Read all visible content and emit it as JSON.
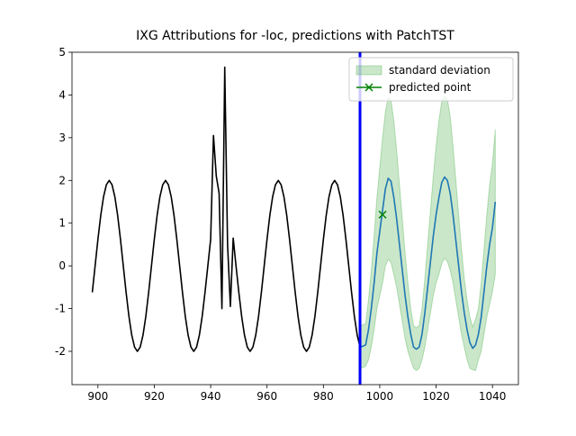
{
  "chart_data": {
    "type": "line",
    "title": "IXG Attributions for -loc, predictions with PatchTST",
    "xlim": [
      890.8,
      1049.2
    ],
    "ylim": [
      -2.78,
      5
    ],
    "xticks": [
      900,
      920,
      940,
      960,
      980,
      1000,
      1020,
      1040
    ],
    "yticks": [
      -2,
      -1,
      0,
      1,
      2,
      3,
      4,
      5
    ],
    "legend": "upper right",
    "vline": {
      "x": 993,
      "color": "#0000ff"
    },
    "band": {
      "name": "standard deviation",
      "color": "#2ca02c",
      "x": [
        993,
        994,
        995,
        996,
        997,
        998,
        999,
        1000,
        1001,
        1002,
        1003,
        1004,
        1005,
        1006,
        1007,
        1008,
        1009,
        1010,
        1011,
        1012,
        1013,
        1014,
        1015,
        1016,
        1017,
        1018,
        1019,
        1020,
        1021,
        1022,
        1023,
        1024,
        1025,
        1026,
        1027,
        1028,
        1029,
        1030,
        1031,
        1032,
        1033,
        1034,
        1035,
        1036,
        1037,
        1038,
        1039,
        1040,
        1041
      ],
      "lower": [
        -2.4,
        -2.38,
        -2.35,
        -2.2,
        -1.9,
        -1.5,
        -1.0,
        -0.7,
        -0.4,
        0.0,
        0.15,
        0.08,
        -0.2,
        -0.5,
        -0.9,
        -1.3,
        -1.7,
        -2.0,
        -2.2,
        -2.4,
        -2.45,
        -2.4,
        -2.2,
        -1.9,
        -1.5,
        -1.1,
        -0.7,
        -0.4,
        -0.2,
        0.05,
        0.18,
        0.1,
        -0.1,
        -0.4,
        -0.8,
        -1.2,
        -1.6,
        -1.9,
        -2.2,
        -2.4,
        -2.43,
        -2.45,
        -2.2,
        -2.0,
        -1.6,
        -1.2,
        -0.9,
        -0.6,
        -0.2
      ],
      "upper": [
        -1.4,
        -1.38,
        -1.35,
        -0.8,
        -0.1,
        0.7,
        1.6,
        2.3,
        3.0,
        3.6,
        3.95,
        3.88,
        3.4,
        2.7,
        1.9,
        1.1,
        0.3,
        -0.4,
        -1.0,
        -1.4,
        -1.45,
        -1.4,
        -1.0,
        -0.3,
        0.5,
        1.3,
        2.1,
        2.8,
        3.4,
        3.85,
        3.98,
        3.9,
        3.5,
        2.8,
        2.0,
        1.2,
        0.4,
        -0.3,
        -0.8,
        -1.2,
        -1.43,
        -1.25,
        -1.0,
        -0.4,
        0.4,
        1.2,
        1.9,
        2.4,
        3.2
      ]
    },
    "series": [
      {
        "color": "#000000",
        "x": [
          898,
          899,
          900,
          901,
          902,
          903,
          904,
          905,
          906,
          907,
          908,
          909,
          910,
          911,
          912,
          913,
          914,
          915,
          916,
          917,
          918,
          919,
          920,
          921,
          922,
          923,
          924,
          925,
          926,
          927,
          928,
          929,
          930,
          931,
          932,
          933,
          934,
          935,
          936,
          937,
          938,
          939,
          940,
          941,
          942,
          943,
          944,
          945,
          946,
          947,
          948,
          949,
          950,
          951,
          952,
          953,
          954,
          955,
          956,
          957,
          958,
          959,
          960,
          961,
          962,
          963,
          964,
          965,
          966,
          967,
          968,
          969,
          970,
          971,
          972,
          973,
          974,
          975,
          976,
          977,
          978,
          979,
          980,
          981,
          982,
          983,
          984,
          985,
          986,
          987,
          988,
          989,
          990,
          991,
          992,
          993
        ],
        "values": [
          -0.62,
          0,
          0.62,
          1.18,
          1.62,
          1.9,
          2,
          1.9,
          1.62,
          1.18,
          0.62,
          0,
          -0.62,
          -1.18,
          -1.62,
          -1.9,
          -2,
          -1.9,
          -1.62,
          -1.18,
          -0.62,
          0,
          0.62,
          1.18,
          1.62,
          1.9,
          2,
          1.9,
          1.62,
          1.18,
          0.62,
          0,
          -0.62,
          -1.18,
          -1.62,
          -1.9,
          -2,
          -1.9,
          -1.62,
          -1.18,
          -0.62,
          0,
          0.62,
          3.05,
          2.1,
          1.7,
          -1.0,
          4.65,
          0.5,
          -0.95,
          0.65,
          0,
          -0.62,
          -1.18,
          -1.62,
          -1.9,
          -2,
          -1.9,
          -1.62,
          -1.18,
          -0.62,
          0,
          0.62,
          1.18,
          1.62,
          1.9,
          2,
          1.9,
          1.62,
          1.18,
          0.62,
          0,
          -0.62,
          -1.18,
          -1.62,
          -1.9,
          -2,
          -1.9,
          -1.62,
          -1.18,
          -0.62,
          0,
          0.62,
          1.18,
          1.62,
          1.9,
          2,
          1.9,
          1.62,
          1.18,
          0.62,
          0,
          -0.62,
          -1.18,
          -1.62,
          -1.9
        ]
      },
      {
        "color": "#1f77b4",
        "x": [
          993,
          994,
          995,
          996,
          997,
          998,
          999,
          1000,
          1001,
          1002,
          1003,
          1004,
          1005,
          1006,
          1007,
          1008,
          1009,
          1010,
          1011,
          1012,
          1013,
          1014,
          1015,
          1016,
          1017,
          1018,
          1019,
          1020,
          1021,
          1022,
          1023,
          1024,
          1025,
          1026,
          1027,
          1028,
          1029,
          1030,
          1031,
          1032,
          1033,
          1034,
          1035,
          1036,
          1037,
          1038,
          1039,
          1040,
          1041
        ],
        "values": [
          -1.9,
          -1.88,
          -1.85,
          -1.5,
          -1.0,
          -0.4,
          0.3,
          0.8,
          1.3,
          1.8,
          2.05,
          1.98,
          1.6,
          1.1,
          0.5,
          -0.1,
          -0.7,
          -1.2,
          -1.6,
          -1.9,
          -1.95,
          -1.9,
          -1.6,
          -1.1,
          -0.5,
          0.1,
          0.7,
          1.2,
          1.6,
          1.95,
          2.08,
          2.0,
          1.7,
          1.2,
          0.6,
          0.0,
          -0.6,
          -1.1,
          -1.5,
          -1.8,
          -1.93,
          -1.85,
          -1.6,
          -1.2,
          -0.6,
          0.0,
          0.5,
          0.9,
          1.5
        ]
      },
      {
        "name": "predicted point",
        "color": "#008000",
        "marker": "x",
        "x": [
          1001
        ],
        "values": [
          1.2
        ]
      }
    ]
  }
}
